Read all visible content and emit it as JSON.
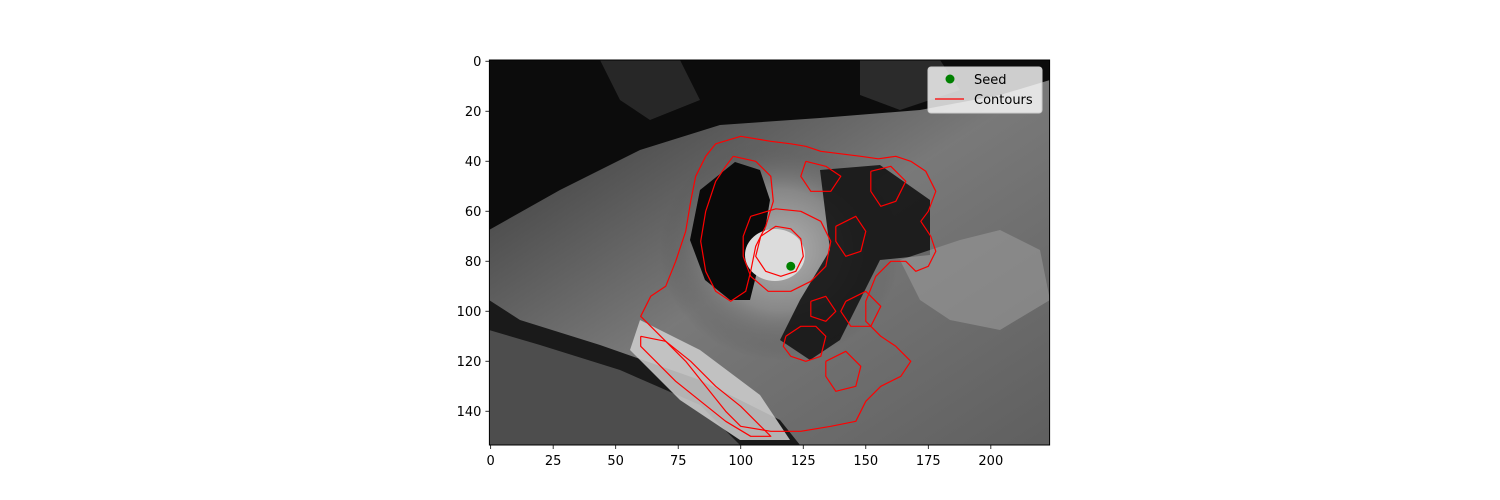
{
  "chart_data": {
    "type": "image",
    "title": "",
    "xlabel": "",
    "ylabel": "",
    "image_extent": {
      "x": [
        -0.5,
        223.5
      ],
      "y": [
        153.5,
        -0.5
      ]
    },
    "xlim": [
      -0.5,
      223.5
    ],
    "ylim": [
      153.5,
      -0.5
    ],
    "x_ticks": [
      0,
      25,
      50,
      75,
      100,
      125,
      150,
      175,
      200
    ],
    "y_ticks": [
      0,
      20,
      40,
      60,
      80,
      100,
      120,
      140
    ],
    "image_description": "grayscale cardiac MRI slice",
    "seed": {
      "x": 120,
      "y": 82,
      "color": "#008000"
    },
    "contour_color": "#ff0000",
    "contours": [
      [
        [
          90,
          33
        ],
        [
          100,
          30
        ],
        [
          112,
          32
        ],
        [
          120,
          33
        ],
        [
          126,
          34
        ],
        [
          132,
          36
        ],
        [
          140,
          37
        ],
        [
          148,
          38
        ],
        [
          155,
          39
        ],
        [
          162,
          38
        ],
        [
          168,
          40
        ],
        [
          174,
          44
        ],
        [
          178,
          52
        ],
        [
          175,
          60
        ],
        [
          172,
          64
        ],
        [
          176,
          70
        ],
        [
          178,
          76
        ],
        [
          175,
          82
        ],
        [
          170,
          84
        ],
        [
          166,
          80
        ],
        [
          160,
          80
        ],
        [
          154,
          86
        ],
        [
          150,
          96
        ],
        [
          150,
          104
        ],
        [
          156,
          110
        ],
        [
          162,
          114
        ],
        [
          168,
          120
        ],
        [
          164,
          126
        ],
        [
          156,
          130
        ],
        [
          150,
          136
        ],
        [
          146,
          144
        ],
        [
          136,
          146
        ],
        [
          124,
          148
        ],
        [
          112,
          148
        ],
        [
          100,
          146
        ],
        [
          94,
          140
        ],
        [
          86,
          130
        ],
        [
          78,
          120
        ],
        [
          66,
          108
        ],
        [
          60,
          102
        ],
        [
          64,
          94
        ],
        [
          70,
          90
        ],
        [
          74,
          80
        ],
        [
          78,
          68
        ],
        [
          80,
          56
        ],
        [
          82,
          46
        ],
        [
          86,
          38
        ],
        [
          90,
          33
        ]
      ],
      [
        [
          97,
          38
        ],
        [
          106,
          40
        ],
        [
          112,
          46
        ],
        [
          113,
          56
        ],
        [
          110,
          66
        ],
        [
          106,
          74
        ],
        [
          104,
          84
        ],
        [
          102,
          92
        ],
        [
          96,
          96
        ],
        [
          90,
          92
        ],
        [
          86,
          84
        ],
        [
          84,
          72
        ],
        [
          86,
          60
        ],
        [
          90,
          48
        ],
        [
          94,
          42
        ],
        [
          97,
          38
        ]
      ],
      [
        [
          104,
          62
        ],
        [
          114,
          59
        ],
        [
          124,
          60
        ],
        [
          132,
          64
        ],
        [
          136,
          72
        ],
        [
          134,
          82
        ],
        [
          128,
          88
        ],
        [
          120,
          92
        ],
        [
          111,
          92
        ],
        [
          104,
          86
        ],
        [
          101,
          78
        ],
        [
          101,
          70
        ],
        [
          104,
          62
        ]
      ],
      [
        [
          108,
          70
        ],
        [
          114,
          66
        ],
        [
          120,
          67
        ],
        [
          124,
          71
        ],
        [
          125,
          78
        ],
        [
          122,
          84
        ],
        [
          116,
          86
        ],
        [
          110,
          84
        ],
        [
          106,
          78
        ],
        [
          108,
          70
        ]
      ],
      [
        [
          118,
          110
        ],
        [
          124,
          106
        ],
        [
          130,
          106
        ],
        [
          134,
          110
        ],
        [
          132,
          118
        ],
        [
          126,
          120
        ],
        [
          120,
          118
        ],
        [
          117,
          114
        ],
        [
          118,
          110
        ]
      ],
      [
        [
          60,
          110
        ],
        [
          70,
          112
        ],
        [
          80,
          120
        ],
        [
          90,
          130
        ],
        [
          100,
          138
        ],
        [
          108,
          146
        ],
        [
          112,
          150
        ],
        [
          104,
          150
        ],
        [
          94,
          144
        ],
        [
          84,
          136
        ],
        [
          74,
          128
        ],
        [
          66,
          120
        ],
        [
          60,
          114
        ],
        [
          60,
          110
        ]
      ],
      [
        [
          138,
          66
        ],
        [
          146,
          62
        ],
        [
          150,
          68
        ],
        [
          148,
          76
        ],
        [
          142,
          78
        ],
        [
          138,
          72
        ],
        [
          138,
          66
        ]
      ],
      [
        [
          126,
          40
        ],
        [
          134,
          42
        ],
        [
          140,
          46
        ],
        [
          136,
          52
        ],
        [
          128,
          52
        ],
        [
          124,
          46
        ],
        [
          126,
          40
        ]
      ],
      [
        [
          152,
          44
        ],
        [
          160,
          42
        ],
        [
          166,
          48
        ],
        [
          162,
          56
        ],
        [
          156,
          58
        ],
        [
          152,
          52
        ],
        [
          152,
          44
        ]
      ],
      [
        [
          142,
          96
        ],
        [
          150,
          92
        ],
        [
          156,
          98
        ],
        [
          152,
          106
        ],
        [
          144,
          106
        ],
        [
          140,
          100
        ],
        [
          142,
          96
        ]
      ],
      [
        [
          128,
          96
        ],
        [
          134,
          94
        ],
        [
          138,
          100
        ],
        [
          134,
          104
        ],
        [
          128,
          102
        ],
        [
          128,
          96
        ]
      ],
      [
        [
          134,
          120
        ],
        [
          142,
          116
        ],
        [
          148,
          122
        ],
        [
          146,
          130
        ],
        [
          138,
          132
        ],
        [
          134,
          126
        ],
        [
          134,
          120
        ]
      ]
    ],
    "legend": {
      "location": "upper right",
      "entries": [
        {
          "label": "Seed",
          "marker": "circle",
          "color": "#008000"
        },
        {
          "label": "Contours",
          "marker": "line",
          "color": "#ff0000"
        }
      ]
    }
  }
}
